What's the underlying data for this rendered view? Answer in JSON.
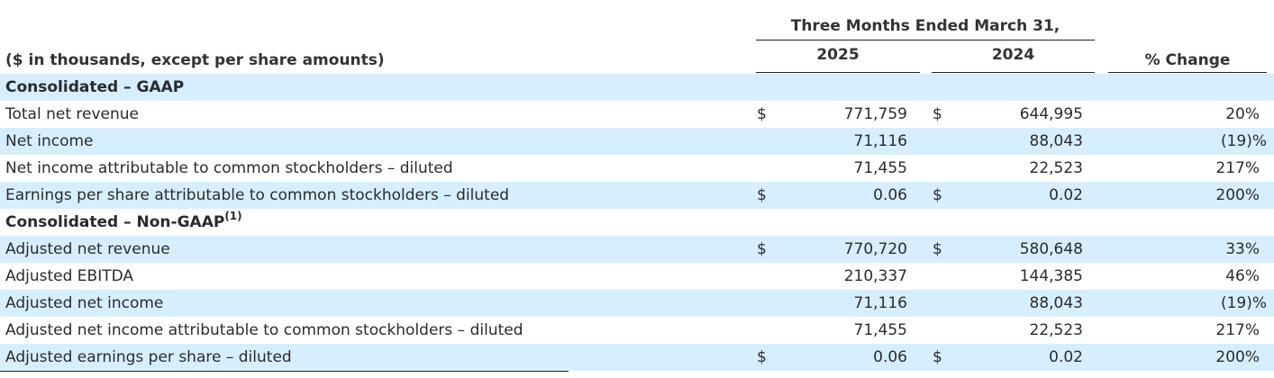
{
  "header": {
    "period_title": "Three Months Ended March 31,",
    "year_2025": "2025",
    "year_2024": "2024",
    "pct_change": "% Change",
    "units_note": "($ in thousands, except per share amounts)"
  },
  "sections": {
    "gaap": {
      "label": "Consolidated – GAAP"
    },
    "non_gaap": {
      "label": "Consolidated – Non-GAAP",
      "footnote": "(1)"
    }
  },
  "rows": [
    {
      "label": "Total net revenue",
      "dollar_2025": "$",
      "value_2025": "771,759",
      "dollar_2024": "$",
      "value_2024": "644,995",
      "change": "20%"
    },
    {
      "label": "Net income",
      "dollar_2025": "",
      "value_2025": "71,116",
      "dollar_2024": "",
      "value_2024": "88,043",
      "change": "(19)%"
    },
    {
      "label": "Net income attributable to common stockholders – diluted",
      "dollar_2025": "",
      "value_2025": "71,455",
      "dollar_2024": "",
      "value_2024": "22,523",
      "change": "217%"
    },
    {
      "label": "Earnings per share attributable to common stockholders – diluted",
      "dollar_2025": "$",
      "value_2025": "0.06",
      "dollar_2024": "$",
      "value_2024": "0.02",
      "change": "200%"
    },
    {
      "label": "Adjusted net revenue",
      "dollar_2025": "$",
      "value_2025": "770,720",
      "dollar_2024": "$",
      "value_2024": "580,648",
      "change": "33%"
    },
    {
      "label": "Adjusted EBITDA",
      "dollar_2025": "",
      "value_2025": "210,337",
      "dollar_2024": "",
      "value_2024": "144,385",
      "change": "46%"
    },
    {
      "label": "Adjusted net income",
      "dollar_2025": "",
      "value_2025": "71,116",
      "dollar_2024": "",
      "value_2024": "88,043",
      "change": "(19)%"
    },
    {
      "label": "Adjusted net income attributable to common stockholders – diluted",
      "dollar_2025": "",
      "value_2025": "71,455",
      "dollar_2024": "",
      "value_2024": "22,523",
      "change": "217%"
    },
    {
      "label": "Adjusted earnings per share – diluted",
      "dollar_2025": "$",
      "value_2025": "0.06",
      "dollar_2024": "$",
      "value_2024": "0.02",
      "change": "200%"
    }
  ],
  "colors": {
    "row_shade": "#d6efff",
    "text": "#2b2b2b",
    "rule": "#222222"
  }
}
